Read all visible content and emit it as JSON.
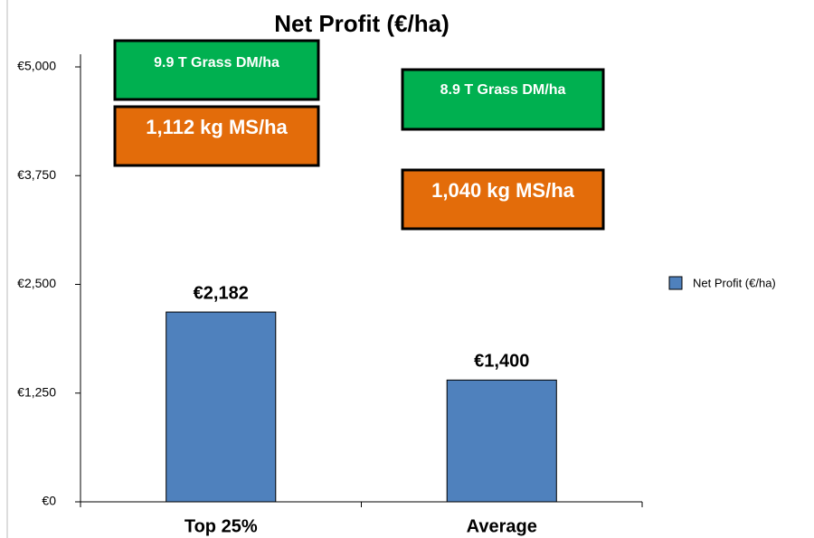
{
  "chart_data": {
    "type": "bar",
    "title": "Net Profit (€/ha)",
    "categories": [
      "Top 25%",
      "Average"
    ],
    "series": [
      {
        "name": "Net Profit (€/ha)",
        "color": "#4f81bd",
        "values": [
          2182,
          1400
        ],
        "value_labels": [
          "€2,182",
          "€1,400"
        ]
      }
    ],
    "ylim": [
      0,
      5000
    ],
    "yticks": [
      {
        "value": 0,
        "label": "€0"
      },
      {
        "value": 1250,
        "label": "€1,250"
      },
      {
        "value": 2500,
        "label": "€2,500"
      },
      {
        "value": 3750,
        "label": "€3,750"
      },
      {
        "value": 5000,
        "label": "€5,000"
      }
    ],
    "legend": "right",
    "annotations": [
      {
        "text": "9.9 T Grass DM/ha",
        "color": "#00b050"
      },
      {
        "text": "1,112 kg MS/ha",
        "color": "#e36c0a"
      },
      {
        "text": "8.9 T Grass DM/ha",
        "color": "#00b050"
      },
      {
        "text": "1,040 kg MS/ha",
        "color": "#e36c0a"
      }
    ]
  }
}
